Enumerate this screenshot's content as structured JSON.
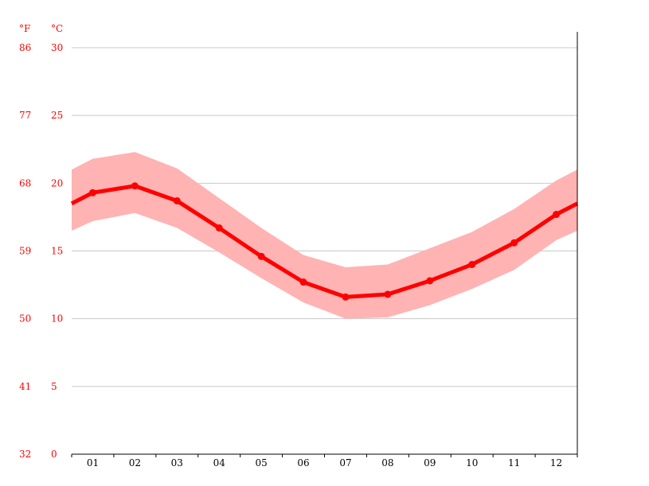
{
  "chart_data": {
    "type": "line",
    "title": "",
    "xlabel": "",
    "ylabel": "",
    "units": {
      "fahrenheit": "°F",
      "celsius": "°C"
    },
    "categories": [
      "01",
      "02",
      "03",
      "04",
      "05",
      "06",
      "07",
      "08",
      "09",
      "10",
      "11",
      "12"
    ],
    "ylim_celsius": [
      0,
      30
    ],
    "y_ticks": [
      {
        "c": "30",
        "f": "86",
        "value": 30
      },
      {
        "c": "25",
        "f": "77",
        "value": 25
      },
      {
        "c": "20",
        "f": "68",
        "value": 20
      },
      {
        "c": "15",
        "f": "59",
        "value": 15
      },
      {
        "c": "10",
        "f": "50",
        "value": 10
      },
      {
        "c": "5",
        "f": "41",
        "value": 5
      },
      {
        "c": "0",
        "f": "32",
        "value": 0
      }
    ],
    "grid": true,
    "series": [
      {
        "role": "mean",
        "values": [
          19.3,
          19.8,
          18.7,
          16.7,
          14.6,
          12.7,
          11.6,
          11.8,
          12.8,
          14.0,
          15.6,
          17.7
        ]
      },
      {
        "role": "max",
        "values": [
          21.8,
          22.3,
          21.1,
          18.9,
          16.7,
          14.7,
          13.8,
          14.0,
          15.2,
          16.4,
          18.1,
          20.2
        ]
      },
      {
        "role": "min",
        "values": [
          17.2,
          17.8,
          16.7,
          14.9,
          13.0,
          11.2,
          10.0,
          10.1,
          11.0,
          12.2,
          13.6,
          15.8
        ]
      }
    ],
    "colors": {
      "line": "#ff0000",
      "band": "#ffb3b3",
      "grid": "#c8c8c8",
      "axis": "#000000",
      "tick_text": "#000000",
      "y_text": "#ff0000"
    }
  }
}
